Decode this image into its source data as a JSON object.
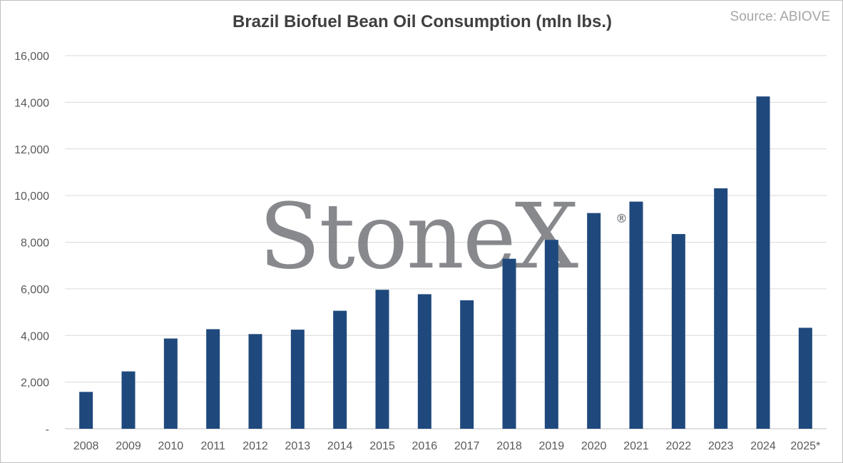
{
  "chart_data": {
    "type": "bar",
    "title": "Brazil Biofuel Bean Oil Consumption (mln lbs.)",
    "source": "Source: ABIOVE",
    "watermark": "StoneX",
    "watermark_mark": "®",
    "xlabel": "",
    "ylabel": "",
    "ylim": [
      0,
      16000
    ],
    "yticks": [
      0,
      2000,
      4000,
      6000,
      8000,
      10000,
      12000,
      14000,
      16000
    ],
    "ytick_labels": [
      "-",
      "2,000",
      "4,000",
      "6,000",
      "8,000",
      "10,000",
      "12,000",
      "14,000",
      "16,000"
    ],
    "categories": [
      "2008",
      "2009",
      "2010",
      "2011",
      "2012",
      "2013",
      "2014",
      "2015",
      "2016",
      "2017",
      "2018",
      "2019",
      "2020",
      "2021",
      "2022",
      "2023",
      "2024",
      "2025*"
    ],
    "values": [
      1580,
      2460,
      3870,
      4270,
      4060,
      4250,
      5060,
      5960,
      5770,
      5510,
      7290,
      8100,
      9250,
      9740,
      8350,
      10310,
      14250,
      4330
    ],
    "bar_color": "#1f497d",
    "grid": true,
    "legend": "none"
  }
}
